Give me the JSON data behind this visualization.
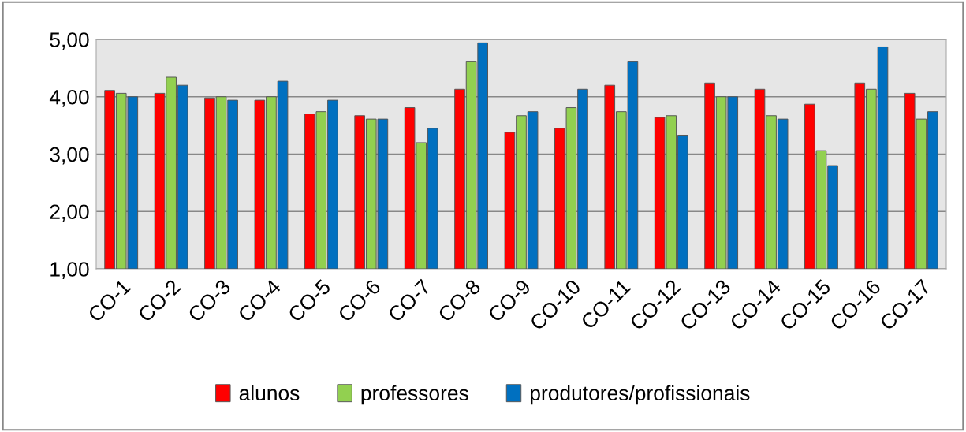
{
  "chart_data": {
    "type": "bar",
    "categories": [
      "CO-1",
      "CO-2",
      "CO-3",
      "CO-4",
      "CO-5",
      "CO-6",
      "CO-7",
      "CO-8",
      "CO-9",
      "CO-10",
      "CO-11",
      "CO-12",
      "CO-13",
      "CO-14",
      "CO-15",
      "CO-16",
      "CO-17"
    ],
    "series": [
      {
        "name": "alunos",
        "color": "#ff0000",
        "values": [
          4.11,
          4.06,
          3.98,
          3.94,
          3.7,
          3.67,
          3.81,
          4.13,
          3.38,
          3.45,
          4.2,
          3.64,
          4.24,
          4.13,
          3.87,
          4.24,
          4.06
        ]
      },
      {
        "name": "professores",
        "color": "#92d050",
        "values": [
          4.06,
          4.34,
          4.0,
          4.0,
          3.74,
          3.61,
          3.2,
          4.61,
          3.67,
          3.81,
          3.74,
          3.67,
          4.0,
          3.67,
          3.06,
          4.13,
          3.61
        ]
      },
      {
        "name": "produtores/profissionais",
        "color": "#0070c0",
        "values": [
          4.0,
          4.2,
          3.94,
          4.27,
          3.94,
          3.61,
          3.45,
          4.94,
          3.74,
          4.13,
          4.61,
          3.33,
          4.0,
          3.61,
          2.8,
          4.87,
          3.74
        ]
      }
    ],
    "ylim": [
      1,
      5
    ],
    "yticks": [
      {
        "value": 1,
        "label": "1,00"
      },
      {
        "value": 2,
        "label": "2,00"
      },
      {
        "value": 3,
        "label": "3,00"
      },
      {
        "value": 4,
        "label": "4,00"
      },
      {
        "value": 5,
        "label": "5,00"
      }
    ],
    "grid": "y",
    "legend": "bottom"
  }
}
